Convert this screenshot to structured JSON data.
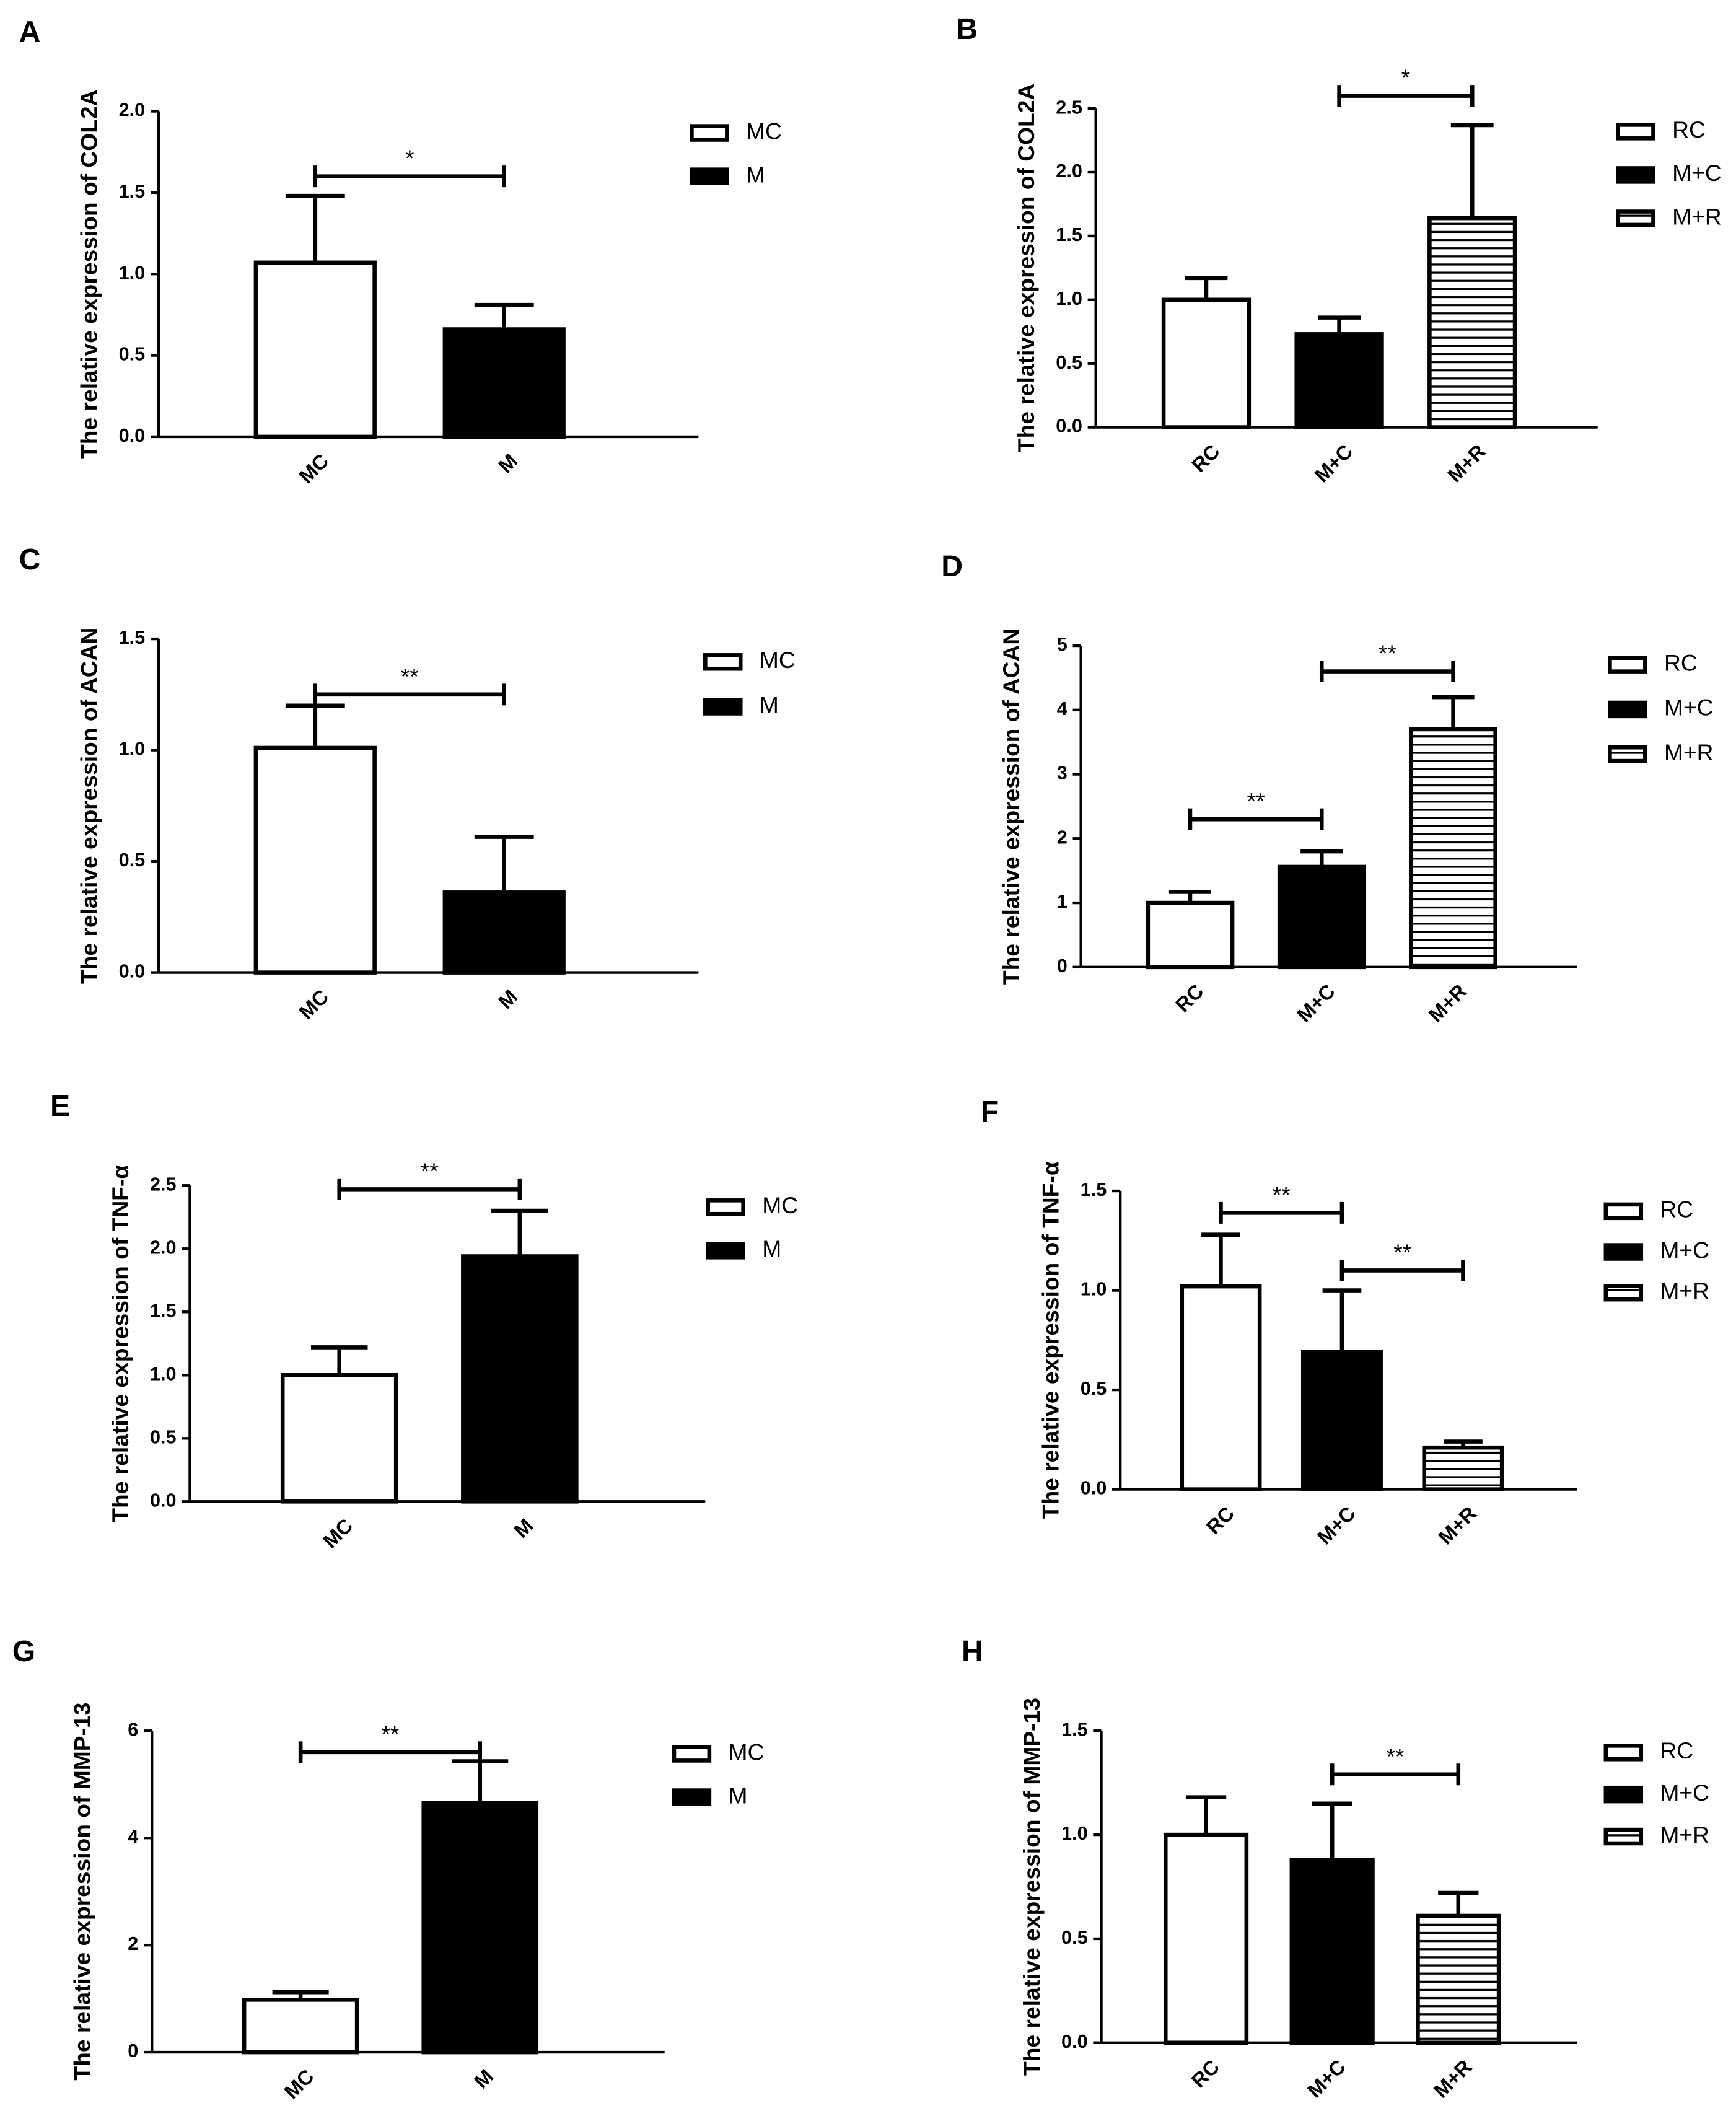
{
  "chart_data": [
    {
      "type": "bar",
      "panel": "A",
      "ylabel": "The relative expression of COL2A",
      "categories": [
        "MC",
        "M"
      ],
      "values": [
        1.07,
        0.66
      ],
      "errors": [
        0.41,
        0.15
      ],
      "fills": [
        "#ffffff",
        "#000000"
      ],
      "legend": [
        "MC",
        "M"
      ],
      "ylim": [
        0,
        2
      ],
      "yticks": [
        {
          "value": 0,
          "label": "0.0"
        },
        0.5,
        {
          "value": 1,
          "label": "1.0"
        },
        1.5,
        {
          "value": 2,
          "label": "2.0"
        }
      ],
      "significance": [
        {
          "from": 0,
          "to": 1,
          "y": 1.6,
          "label": "*"
        }
      ]
    },
    {
      "type": "bar",
      "panel": "B",
      "ylabel": "The relative expression of COL2A",
      "categories": [
        "RC",
        "M+C",
        "M+R"
      ],
      "values": [
        1.0,
        0.73,
        1.64
      ],
      "errors": [
        0.17,
        0.13,
        0.73
      ],
      "fills": [
        "#ffffff",
        "#000000",
        "stripes"
      ],
      "legend": [
        "RC",
        "M+C",
        "M+R"
      ],
      "ylim": [
        0,
        2.5
      ],
      "yticks": [
        {
          "value": 0,
          "label": "0.0"
        },
        0.5,
        {
          "value": 1,
          "label": "1.0"
        },
        1.5,
        {
          "value": 2,
          "label": "2.0"
        },
        2.5
      ],
      "significance": [
        {
          "from": 1,
          "to": 2,
          "y": 2.6,
          "label": "*"
        }
      ]
    },
    {
      "type": "bar",
      "panel": "C",
      "ylabel": "The relative expression of ACAN",
      "categories": [
        "MC",
        "M"
      ],
      "values": [
        1.01,
        0.36
      ],
      "errors": [
        0.19,
        0.25
      ],
      "fills": [
        "#ffffff",
        "#000000"
      ],
      "legend": [
        "MC",
        "M"
      ],
      "ylim": [
        0,
        1.5
      ],
      "yticks": [
        {
          "value": 0,
          "label": "0.0"
        },
        0.5,
        {
          "value": 1,
          "label": "1.0"
        },
        1.5
      ],
      "significance": [
        {
          "from": 0,
          "to": 1,
          "y": 1.25,
          "label": "**"
        }
      ]
    },
    {
      "type": "bar",
      "panel": "D",
      "ylabel": "The relative expression of ACAN",
      "categories": [
        "RC",
        "M+C",
        "M+R"
      ],
      "values": [
        1.0,
        1.56,
        3.7
      ],
      "errors": [
        0.17,
        0.24,
        0.5
      ],
      "fills": [
        "#ffffff",
        "#000000",
        "stripes"
      ],
      "legend": [
        "RC",
        "M+C",
        "M+R"
      ],
      "ylim": [
        0,
        5
      ],
      "yticks": [
        0,
        1,
        2,
        3,
        4,
        5
      ],
      "significance": [
        {
          "from": 0,
          "to": 1,
          "y": 2.3,
          "label": "**"
        },
        {
          "from": 1,
          "to": 2,
          "y": 4.6,
          "label": "**"
        }
      ]
    },
    {
      "type": "bar",
      "panel": "E",
      "ylabel": "The relative expression of TNF-α",
      "categories": [
        "MC",
        "M"
      ],
      "values": [
        1.0,
        1.94
      ],
      "errors": [
        0.22,
        0.36
      ],
      "fills": [
        "#ffffff",
        "#000000"
      ],
      "legend": [
        "MC",
        "M"
      ],
      "ylim": [
        0,
        2.5
      ],
      "yticks": [
        {
          "value": 0,
          "label": "0.0"
        },
        0.5,
        {
          "value": 1,
          "label": "1.0"
        },
        1.5,
        {
          "value": 2,
          "label": "2.0"
        },
        2.5
      ],
      "significance": [
        {
          "from": 0,
          "to": 1,
          "y": 2.47,
          "label": "**"
        }
      ]
    },
    {
      "type": "bar",
      "panel": "F",
      "ylabel": "The relative expression of TNF-α",
      "categories": [
        "RC",
        "M+C",
        "M+R"
      ],
      "values": [
        1.02,
        0.69,
        0.21
      ],
      "errors": [
        0.26,
        0.31,
        0.03
      ],
      "fills": [
        "#ffffff",
        "#000000",
        "stripes"
      ],
      "legend": [
        "RC",
        "M+C",
        "M+R"
      ],
      "ylim": [
        0,
        1.5
      ],
      "yticks": [
        {
          "value": 0,
          "label": "0.0"
        },
        0.5,
        {
          "value": 1,
          "label": "1.0"
        },
        1.5
      ],
      "significance": [
        {
          "from": 0,
          "to": 1,
          "y": 1.39,
          "label": "**"
        },
        {
          "from": 1,
          "to": 2,
          "y": 1.1,
          "label": "**"
        }
      ]
    },
    {
      "type": "bar",
      "panel": "G",
      "ylabel": "The relative expression of MMP-13",
      "categories": [
        "MC",
        "M"
      ],
      "values": [
        0.98,
        4.65
      ],
      "errors": [
        0.14,
        0.78
      ],
      "fills": [
        "#ffffff",
        "#000000"
      ],
      "legend": [
        "MC",
        "M"
      ],
      "ylim": [
        0,
        6
      ],
      "yticks": [
        0,
        2,
        4,
        6
      ],
      "significance": [
        {
          "from": 0,
          "to": 1,
          "y": 5.6,
          "label": "**"
        }
      ]
    },
    {
      "type": "bar",
      "panel": "H",
      "ylabel": "The relative expression of MMP-13",
      "categories": [
        "RC",
        "M+C",
        "M+R"
      ],
      "values": [
        1.0,
        0.88,
        0.61
      ],
      "errors": [
        0.18,
        0.27,
        0.11
      ],
      "fills": [
        "#ffffff",
        "#000000",
        "stripes"
      ],
      "legend": [
        "RC",
        "M+C",
        "M+R"
      ],
      "ylim": [
        0,
        1.5
      ],
      "yticks": [
        {
          "value": 0,
          "label": "0.0"
        },
        0.5,
        {
          "value": 1,
          "label": "1.0"
        },
        1.5
      ],
      "significance": [
        {
          "from": 1,
          "to": 2,
          "y": 1.29,
          "label": "**"
        }
      ]
    }
  ]
}
